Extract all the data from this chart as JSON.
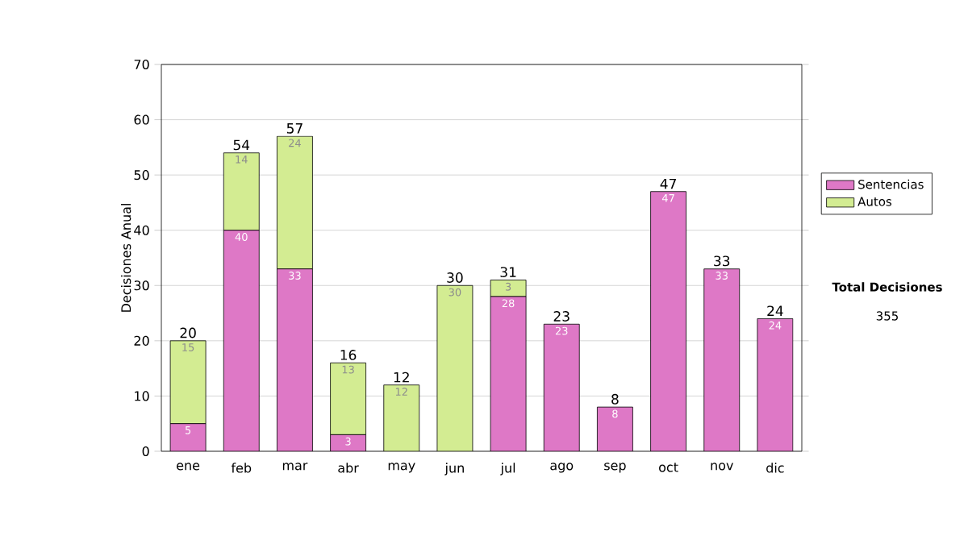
{
  "chart_data": {
    "type": "bar",
    "stacked": true,
    "ylabel": "Decisiones Anual",
    "categories": [
      "ene",
      "feb",
      "mar",
      "abr",
      "may",
      "jun",
      "jul",
      "ago",
      "sep",
      "oct",
      "nov",
      "dic"
    ],
    "series": [
      {
        "name": "Sentencias",
        "color": "#de78c6",
        "values": [
          5,
          40,
          33,
          3,
          0,
          0,
          28,
          23,
          8,
          47,
          33,
          24
        ],
        "value_labels": [
          "5",
          "40",
          "33",
          "3",
          null,
          null,
          "28",
          "23",
          "8",
          "47",
          "33",
          "24"
        ]
      },
      {
        "name": "Autos",
        "color": "#d3ec92",
        "values": [
          15,
          14,
          24,
          13,
          12,
          30,
          3,
          0,
          0,
          0,
          0,
          0
        ],
        "value_labels": [
          "15",
          "14",
          "24",
          "13",
          "12",
          "30",
          "3",
          null,
          null,
          null,
          null,
          null
        ]
      }
    ],
    "totals": [
      "20",
      "54",
      "57",
      "16",
      "12",
      "30",
      "31",
      "23",
      "8",
      "47",
      "33",
      "24"
    ],
    "ylim": [
      0,
      70
    ],
    "yticks": [
      0,
      10,
      20,
      30,
      40,
      50,
      60,
      70
    ],
    "grid": "y",
    "legend": "right",
    "annotations": [
      "Total Decisiones",
      "355"
    ]
  }
}
